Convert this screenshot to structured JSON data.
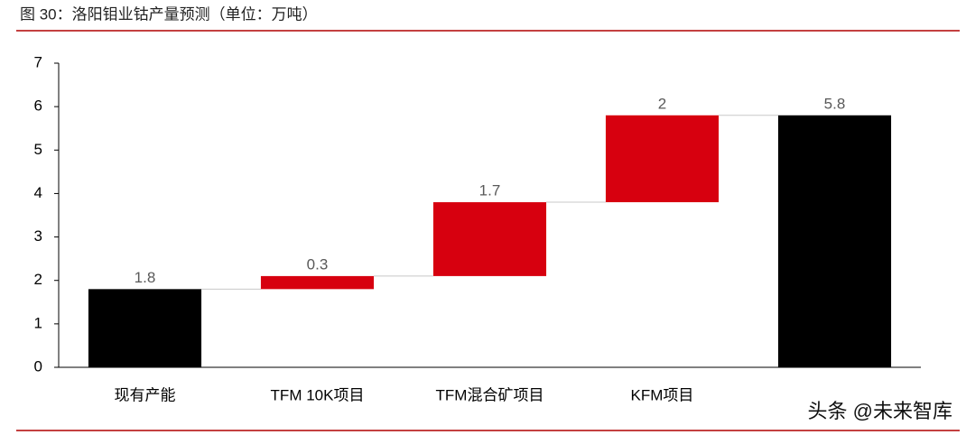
{
  "chart_data": {
    "type": "waterfall",
    "title": "图 30：洛阳钼业钴产量预测（单位：万吨）",
    "categories": [
      "现有产能",
      "TFM 10K项目",
      "TFM混合矿项目",
      "KFM项目",
      null
    ],
    "values": [
      1.8,
      0.3,
      1.7,
      2,
      5.8
    ],
    "is_total": [
      true,
      false,
      false,
      false,
      true
    ],
    "colors": [
      "#000000",
      "#d7000f",
      "#d7000f",
      "#d7000f",
      "#000000"
    ],
    "ylim": [
      0,
      7
    ],
    "yticks": [
      0,
      1,
      2,
      3,
      4,
      5,
      6,
      7
    ],
    "watermark": "头条 @未来智库"
  }
}
